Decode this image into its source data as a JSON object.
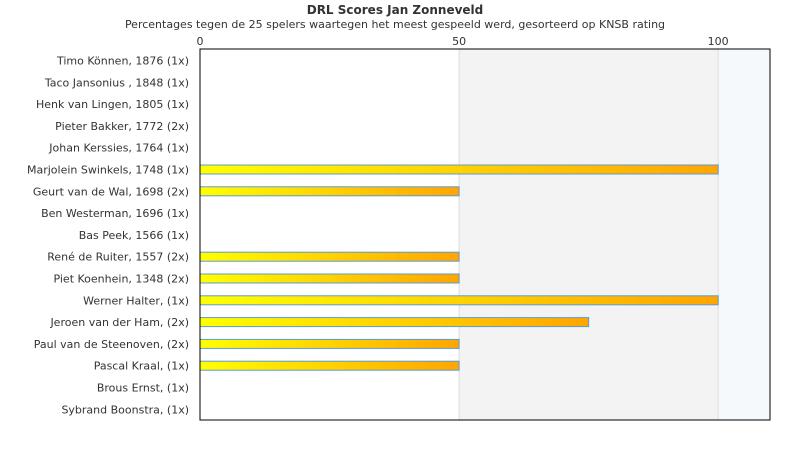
{
  "chart_data": {
    "type": "bar",
    "orientation": "horizontal",
    "title": "DRL Scores Jan Zonneveld",
    "subtitle": "Percentages tegen de 25 spelers waartegen het meest gespeeld werd, gesorteerd op KNSB rating",
    "xlim": [
      0,
      110
    ],
    "xticks": [
      0,
      50,
      100
    ],
    "categories": [
      "Timo Können, 1876 (1x)",
      "Taco Jansonius , 1848 (1x)",
      "Henk van Lingen, 1805 (1x)",
      "Pieter Bakker, 1772 (2x)",
      "Johan Kerssies, 1764 (1x)",
      "Marjolein Swinkels, 1748 (1x)",
      "Geurt van de Wal, 1698 (2x)",
      "Ben Westerman, 1696 (1x)",
      "Bas Peek, 1566 (1x)",
      "René de Ruiter, 1557 (2x)",
      "Piet Koenhein, 1348 (2x)",
      "Werner Halter,  (1x)",
      "Jeroen van der Ham,  (2x)",
      "Paul van de Steenoven,  (2x)",
      "Pascal Kraal,  (1x)",
      "Brous Ernst,  (1x)",
      "Sybrand Boonstra,  (1x)"
    ],
    "values": [
      0,
      0,
      0,
      0,
      0,
      100,
      50,
      0,
      0,
      50,
      50,
      100,
      75,
      50,
      50,
      0,
      0
    ],
    "colors": {
      "bar_start": "#ffff00",
      "bar_end": "#ffa500",
      "bar_border": "#5b9bd5",
      "band_mid": "#f3f3f3",
      "band_high": "#f5f9fc"
    }
  }
}
